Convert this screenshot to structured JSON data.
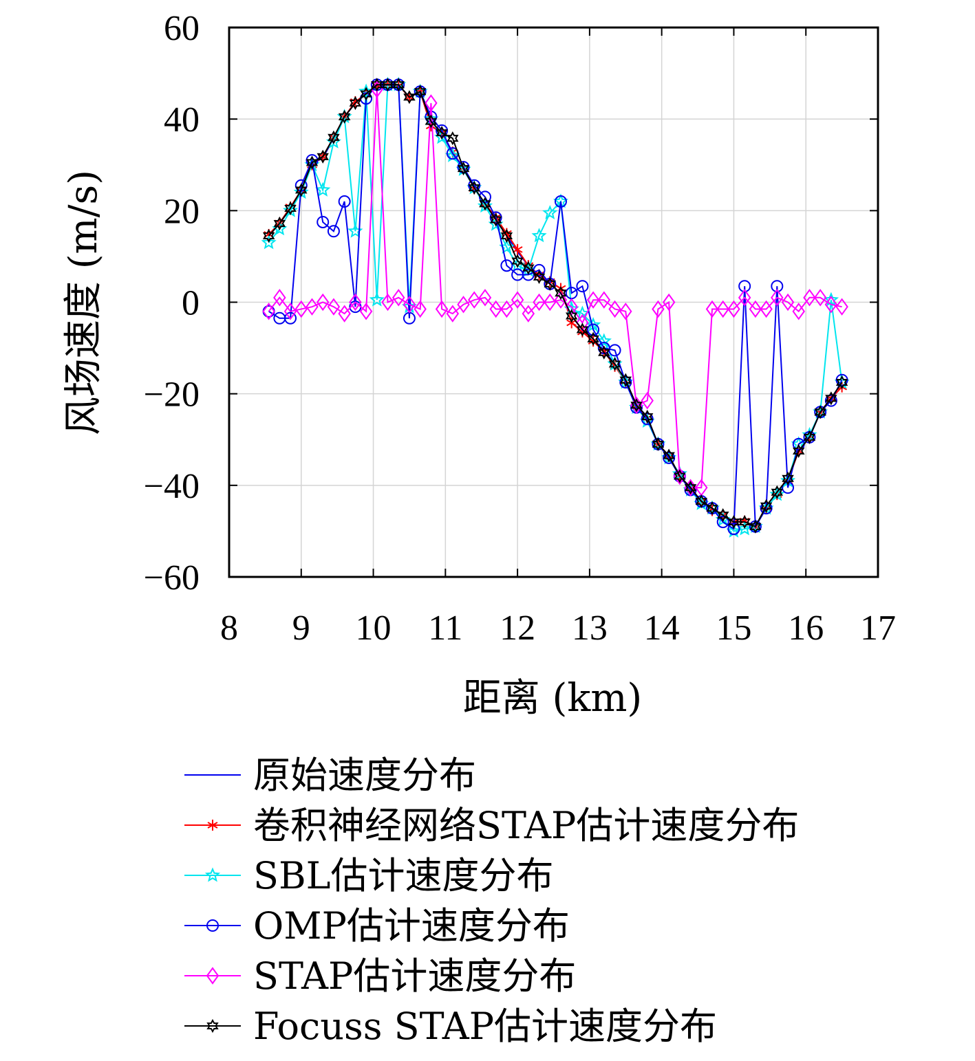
{
  "chart_data": {
    "type": "line",
    "xlabel": "距离 (km)",
    "ylabel": "风场速度 (m/s)",
    "xlim": [
      8,
      17
    ],
    "ylim": [
      -60,
      60
    ],
    "xticks": [
      8,
      9,
      10,
      11,
      12,
      13,
      14,
      15,
      16,
      17
    ],
    "yticks": [
      60,
      40,
      20,
      0,
      -20,
      -40,
      -60
    ],
    "ytick_labels": [
      "60",
      "40",
      "20",
      "0",
      "−20",
      "−40",
      "−60"
    ],
    "grid": true,
    "legend_position": "bottom",
    "x": [
      8.55,
      8.7,
      8.85,
      9.0,
      9.15,
      9.3,
      9.45,
      9.6,
      9.75,
      9.9,
      10.05,
      10.2,
      10.35,
      10.5,
      10.65,
      10.8,
      10.95,
      11.1,
      11.25,
      11.4,
      11.55,
      11.7,
      11.85,
      12.0,
      12.15,
      12.3,
      12.45,
      12.6,
      12.75,
      12.9,
      13.05,
      13.2,
      13.35,
      13.5,
      13.65,
      13.8,
      13.95,
      14.1,
      14.25,
      14.4,
      14.55,
      14.7,
      14.85,
      15.0,
      15.15,
      15.3,
      15.45,
      15.6,
      15.75,
      15.9,
      16.05,
      16.2,
      16.35,
      16.5
    ],
    "series": [
      {
        "name": "原始速度分布",
        "color": "#0000ee",
        "marker": "none",
        "values": [
          14.5,
          17.2,
          20.5,
          24.2,
          30.2,
          31.5,
          35.8,
          40.5,
          43.5,
          45.5,
          47.5,
          47.5,
          47.5,
          44.8,
          46.0,
          38.5,
          37.0,
          32.5,
          29.0,
          25.0,
          21.5,
          18.0,
          14.5,
          11.0,
          8.0,
          6.0,
          4.0,
          2.0,
          -3.0,
          -6.0,
          -8.0,
          -10.5,
          -13.5,
          -17.0,
          -22.5,
          -25.0,
          -31.0,
          -33.5,
          -38.0,
          -40.5,
          -43.5,
          -45.0,
          -46.5,
          -48.0,
          -47.8,
          -49.0,
          -45.0,
          -42.0,
          -39.0,
          -32.5,
          -29.5,
          -24.0,
          -21.0,
          -17.5
        ]
      },
      {
        "name": "卷积神经网络STAP估计速度分布",
        "color": "#ff0000",
        "marker": "asterisk",
        "values": [
          14.8,
          17.3,
          20.8,
          24.5,
          30.0,
          31.8,
          36.0,
          40.5,
          43.8,
          45.5,
          47.3,
          47.5,
          47.3,
          44.8,
          46.0,
          38.5,
          37.0,
          32.8,
          29.3,
          24.8,
          21.5,
          18.5,
          15.0,
          11.5,
          8.0,
          6.0,
          4.5,
          3.0,
          -4.5,
          -6.5,
          -8.5,
          -10.8,
          -14.0,
          -17.3,
          -22.5,
          -25.3,
          -31.0,
          -33.5,
          -38.0,
          -40.5,
          -43.5,
          -45.5,
          -46.5,
          -48.0,
          -47.8,
          -49.0,
          -45.0,
          -42.0,
          -39.0,
          -32.5,
          -29.5,
          -24.0,
          -21.0,
          -18.5
        ]
      },
      {
        "name": "SBL估计速度分布",
        "color": "#00e5ee",
        "marker": "star5",
        "values": [
          13.0,
          16.0,
          20.0,
          24.0,
          30.0,
          24.5,
          35.0,
          40.5,
          15.5,
          46.0,
          0.5,
          47.5,
          47.5,
          -1.0,
          46.0,
          40.0,
          36.0,
          32.0,
          29.0,
          25.0,
          21.0,
          17.0,
          12.0,
          8.0,
          7.0,
          14.5,
          19.5,
          22.0,
          -1.5,
          -2.5,
          -5.0,
          -8.5,
          -13.5,
          -17.5,
          -23.0,
          -26.0,
          -31.0,
          -34.0,
          -37.5,
          -41.0,
          -44.0,
          -45.0,
          -47.5,
          -50.0,
          -49.5,
          -49.0,
          -45.0,
          -42.0,
          -39.0,
          -31.0,
          -29.0,
          -24.0,
          0.5,
          -17.5
        ]
      },
      {
        "name": "OMP估计速度分布",
        "color": "#0000ee",
        "marker": "circle",
        "values": [
          -2.0,
          -3.5,
          -3.5,
          25.5,
          31.0,
          17.5,
          15.5,
          22.0,
          -1.0,
          44.5,
          47.5,
          47.5,
          47.5,
          -3.5,
          46.0,
          40.5,
          37.5,
          32.5,
          29.5,
          25.5,
          23.0,
          18.5,
          8.0,
          6.0,
          6.0,
          7.0,
          4.0,
          22.0,
          2.0,
          3.5,
          -6.0,
          -10.0,
          -10.5,
          -17.5,
          -23.0,
          -25.5,
          -31.0,
          -34.0,
          -38.0,
          -41.0,
          -43.5,
          -45.0,
          -48.0,
          -49.5,
          3.5,
          -49.0,
          -45.0,
          3.5,
          -40.5,
          -31.0,
          -29.5,
          -24.0,
          -21.5,
          -17.0
        ]
      },
      {
        "name": "STAP估计速度分布",
        "color": "#ff00ff",
        "marker": "diamond",
        "values": [
          -2.0,
          1.0,
          -2.0,
          -1.5,
          -1.0,
          0.0,
          -1.0,
          -2.5,
          0.0,
          -2.0,
          46.5,
          0.0,
          1.0,
          -0.5,
          -1.5,
          43.5,
          -1.5,
          -2.5,
          -0.5,
          0.5,
          1.0,
          -1.5,
          -1.5,
          0.5,
          -2.5,
          0.0,
          0.0,
          0.5,
          -1.0,
          -4.5,
          0.5,
          0.5,
          -1.5,
          -2.0,
          -22.5,
          -21.5,
          -1.5,
          0.0,
          -38.0,
          -40.5,
          -40.5,
          -1.5,
          -1.5,
          -1.5,
          1.0,
          -1.5,
          -1.5,
          1.0,
          0.0,
          -2.0,
          1.0,
          1.0,
          -0.5,
          -1.0
        ]
      },
      {
        "name": "Focuss STAP估计速度分布",
        "color": "#000000",
        "marker": "hexagram",
        "values": [
          14.5,
          17.2,
          20.5,
          24.5,
          30.5,
          31.8,
          36.0,
          40.5,
          43.5,
          45.5,
          47.5,
          47.5,
          47.5,
          44.8,
          46.0,
          39.5,
          37.0,
          35.8,
          29.2,
          25.0,
          21.5,
          18.0,
          14.5,
          9.0,
          7.5,
          5.5,
          4.0,
          2.0,
          -3.0,
          -6.0,
          -8.0,
          -11.0,
          -13.5,
          -17.0,
          -22.5,
          -25.0,
          -31.0,
          -33.5,
          -38.0,
          -40.5,
          -43.5,
          -45.0,
          -46.5,
          -48.0,
          -48.0,
          -49.0,
          -44.5,
          -41.5,
          -38.5,
          -32.5,
          -29.5,
          -24.0,
          -21.0,
          -17.5
        ]
      }
    ]
  }
}
